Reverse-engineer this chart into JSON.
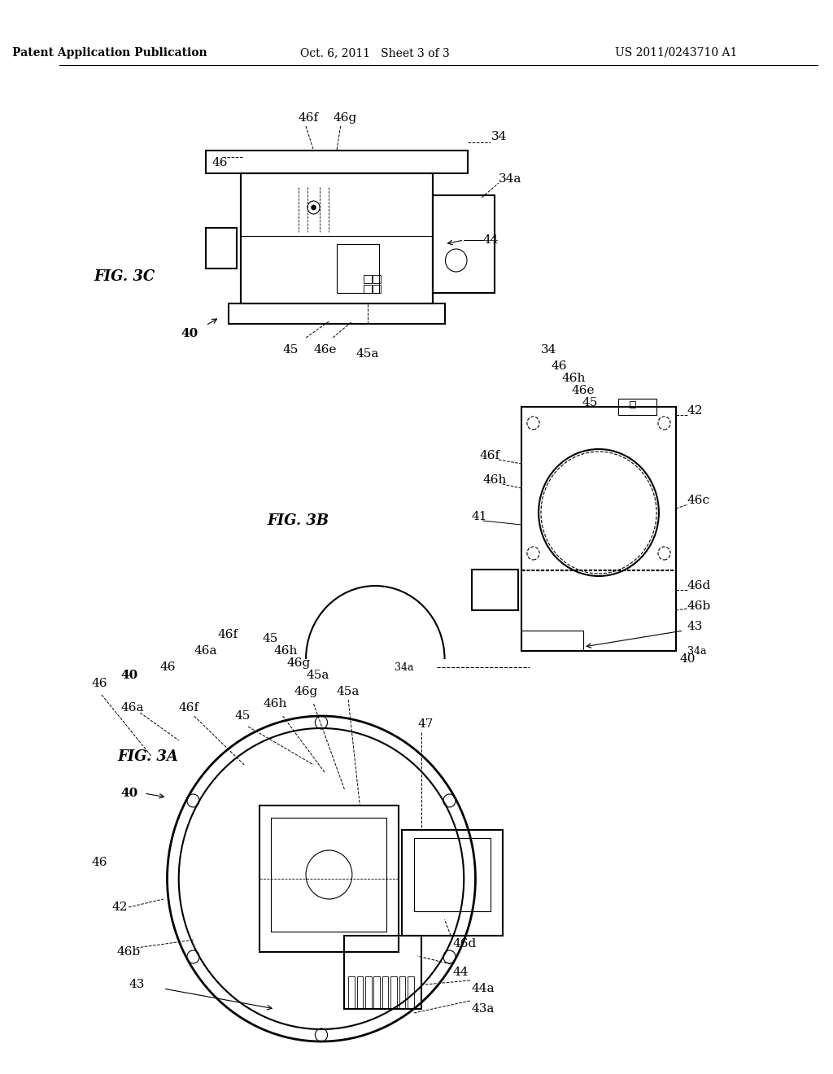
{
  "bg_color": "#ffffff",
  "text_color": "#000000",
  "header_left": "Patent Application Publication",
  "header_center": "Oct. 6, 2011   Sheet 3 of 3",
  "header_right": "US 2011/0243710 A1",
  "fig3c_label": "FIG. 3C",
  "fig3b_label": "FIG. 3B",
  "fig3a_label": "FIG. 3A"
}
